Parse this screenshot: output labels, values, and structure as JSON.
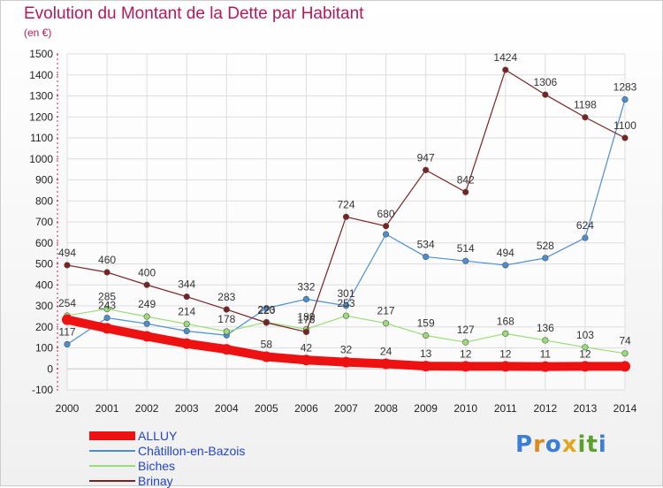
{
  "title": "Evolution du Montant de la Dette par Habitant",
  "unit": "(en €)",
  "logo": {
    "letters": [
      "P",
      "r",
      "o",
      "x",
      "i",
      "t",
      "i"
    ],
    "colors": [
      "#3a7fd5",
      "#e08a1e",
      "#3a7fd5",
      "#e0a81e",
      "#5aa02c",
      "#5aa02c",
      "#3a7fd5"
    ]
  },
  "chart_data": {
    "type": "line",
    "title": "Evolution du Montant de la Dette par Habitant",
    "ylabel": "(en €)",
    "x": [
      "2000",
      "2001",
      "2002",
      "2003",
      "2004",
      "2005",
      "2006",
      "2007",
      "2008",
      "2009",
      "2010",
      "2011",
      "2012",
      "2013",
      "2014"
    ],
    "ylim": [
      -100,
      1500
    ],
    "yticks": [
      "-100",
      "0",
      "100",
      "200",
      "300",
      "400",
      "500",
      "600",
      "700",
      "800",
      "900",
      "1000",
      "1100",
      "1200",
      "1300",
      "1400",
      "1500"
    ],
    "grid": true,
    "legend_position": "bottom-left",
    "series": [
      {
        "name": "ALLUY",
        "color": "#ee1111",
        "width": 10,
        "values": [
          234,
          193,
          155,
          120,
          93,
          58,
          42,
          32,
          24,
          13,
          12,
          12,
          11,
          12,
          12
        ],
        "labels": [
          "234",
          "193",
          "155",
          "120",
          "93",
          "58",
          "42",
          "32",
          "24",
          "13",
          "12",
          "12",
          "11",
          "12",
          "12"
        ],
        "show_labels": [
          false,
          false,
          false,
          false,
          false,
          true,
          true,
          true,
          true,
          true,
          true,
          true,
          true,
          true,
          false
        ]
      },
      {
        "name": "Châtillon-en-Bazois",
        "color": "#4b8ecf",
        "width": 1.2,
        "values": [
          117,
          243,
          215,
          180,
          160,
          289,
          332,
          301,
          641,
          534,
          514,
          494,
          528,
          624,
          1283
        ],
        "labels": [
          "117",
          "243",
          "215",
          "180",
          "160",
          "289",
          "332",
          "301",
          "641",
          "534",
          "514",
          "494",
          "528",
          "624",
          "1283"
        ],
        "show_labels": [
          true,
          true,
          false,
          false,
          false,
          false,
          true,
          true,
          false,
          true,
          true,
          true,
          true,
          true,
          true
        ]
      },
      {
        "name": "Biches",
        "color": "#99dd77",
        "width": 1.2,
        "values": [
          254,
          285,
          249,
          214,
          178,
          223,
          189,
          253,
          217,
          159,
          127,
          168,
          136,
          103,
          74
        ],
        "labels": [
          "254",
          "285",
          "249",
          "214",
          "178",
          "223",
          "189",
          "253",
          "217",
          "159",
          "127",
          "168",
          "136",
          "103",
          "74"
        ],
        "show_labels": [
          true,
          true,
          true,
          true,
          true,
          true,
          true,
          true,
          true,
          true,
          true,
          true,
          true,
          true,
          true
        ]
      },
      {
        "name": "Brinay",
        "color": "#7a2222",
        "width": 1.2,
        "values": [
          494,
          460,
          400,
          344,
          283,
          220,
          176,
          724,
          680,
          947,
          842,
          1424,
          1306,
          1198,
          1100
        ],
        "labels": [
          "494",
          "460",
          "400",
          "344",
          "283",
          "220",
          "176",
          "724",
          "680",
          "947",
          "842",
          "1424",
          "1306",
          "1198",
          "1100"
        ],
        "show_labels": [
          true,
          true,
          true,
          true,
          true,
          true,
          true,
          true,
          true,
          true,
          true,
          true,
          true,
          true,
          true
        ]
      }
    ]
  }
}
